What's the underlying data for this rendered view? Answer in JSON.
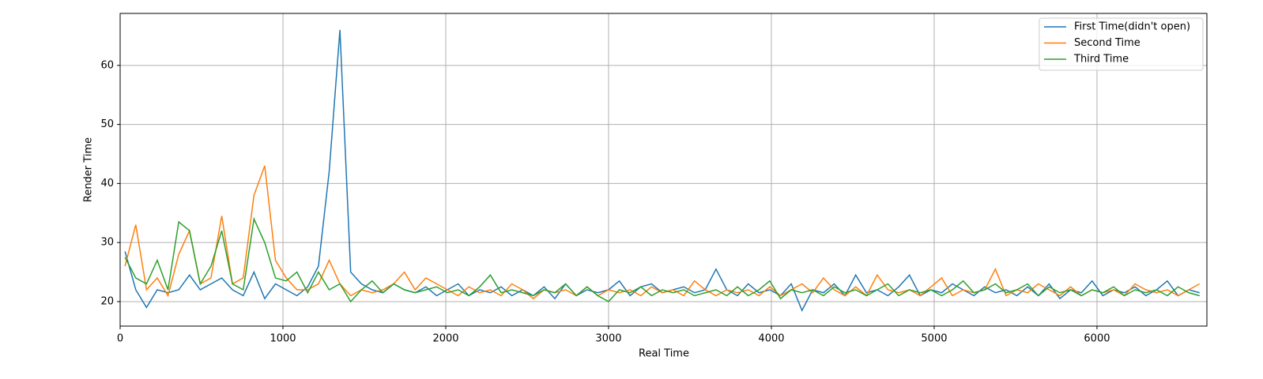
{
  "chart_data": {
    "type": "line",
    "xlabel": "Real Time",
    "ylabel": "Render Time",
    "x": [
      30,
      96,
      162,
      228,
      294,
      360,
      426,
      492,
      558,
      624,
      690,
      756,
      822,
      888,
      954,
      1020,
      1086,
      1152,
      1218,
      1284,
      1350,
      1416,
      1482,
      1548,
      1614,
      1680,
      1746,
      1812,
      1878,
      1944,
      2010,
      2076,
      2142,
      2208,
      2274,
      2340,
      2406,
      2472,
      2538,
      2604,
      2670,
      2736,
      2802,
      2868,
      2934,
      3000,
      3066,
      3132,
      3198,
      3264,
      3330,
      3396,
      3462,
      3528,
      3594,
      3660,
      3726,
      3792,
      3858,
      3924,
      3990,
      4056,
      4122,
      4188,
      4254,
      4320,
      4386,
      4452,
      4518,
      4584,
      4650,
      4716,
      4782,
      4848,
      4914,
      4980,
      5046,
      5112,
      5178,
      5244,
      5310,
      5376,
      5442,
      5508,
      5574,
      5640,
      5706,
      5772,
      5838,
      5904,
      5970,
      6036,
      6102,
      6168,
      6234,
      6300,
      6366,
      6432,
      6498,
      6564,
      6630
    ],
    "series": [
      {
        "name": "First Time(didn't open)",
        "color": "#1f77b4",
        "values": [
          28.5,
          22,
          19,
          22,
          21.5,
          22,
          24.5,
          22,
          23,
          24,
          22,
          21,
          25,
          20.5,
          23,
          22,
          21,
          22.5,
          26,
          42,
          66,
          25,
          23,
          22,
          21.5,
          23,
          22,
          21.5,
          22.5,
          21,
          22,
          23,
          21,
          22,
          21.5,
          22.5,
          21,
          22,
          21,
          22.5,
          20.5,
          23,
          21,
          22,
          21.5,
          22,
          23.5,
          21,
          22.5,
          23,
          21.5,
          22,
          22.5,
          21.5,
          22,
          25.5,
          22,
          21,
          23,
          21.5,
          22,
          21,
          23,
          18.5,
          22,
          21.5,
          23,
          21,
          24.5,
          21.5,
          22,
          21,
          22.5,
          24.5,
          21,
          22,
          21.5,
          23,
          22,
          21,
          22.5,
          21.5,
          22,
          21,
          22.5,
          21,
          23,
          20.5,
          22,
          21.5,
          23.5,
          21,
          22,
          21.5,
          22.5,
          21,
          22,
          23.5,
          21,
          22,
          21.5
        ]
      },
      {
        "name": "Second Time",
        "color": "#ff7f0e",
        "values": [
          26,
          33,
          22,
          24,
          21,
          28,
          32,
          23,
          24,
          34.5,
          23,
          24,
          38,
          43,
          27,
          24,
          22,
          22,
          23,
          27,
          23,
          21,
          22,
          21.5,
          22,
          23,
          25,
          22,
          24,
          23,
          22,
          21,
          22.5,
          21.5,
          22,
          21,
          23,
          22,
          20.5,
          22,
          21.5,
          22,
          21,
          22.5,
          21,
          22,
          21.5,
          22,
          21,
          22.5,
          21.5,
          22,
          21,
          23.5,
          22,
          21,
          22,
          21.5,
          22,
          21,
          22.5,
          21,
          22,
          23,
          21.5,
          24,
          22,
          21,
          22.5,
          21,
          24.5,
          22,
          21.5,
          22,
          21,
          22.5,
          24,
          21,
          22,
          21.5,
          22,
          25.5,
          21,
          22,
          21.5,
          23,
          22,
          21,
          22.5,
          21,
          22,
          21.5,
          22,
          21,
          23,
          22,
          21.5,
          22,
          21,
          22,
          23
        ]
      },
      {
        "name": "Third Time",
        "color": "#2ca02c",
        "values": [
          27.5,
          24,
          23,
          27,
          22,
          33.5,
          32,
          23,
          26,
          32,
          23,
          22,
          34,
          30,
          24,
          23.5,
          25,
          21.5,
          25,
          22,
          23,
          20,
          22,
          23.5,
          21.5,
          23,
          22,
          21.5,
          22,
          22.5,
          21.5,
          22,
          21,
          22.5,
          24.5,
          21.5,
          22,
          21.5,
          21,
          22,
          21.5,
          23,
          21,
          22.5,
          21,
          20,
          22,
          21.5,
          22.5,
          21,
          22,
          21.5,
          22,
          21,
          21.5,
          22,
          21,
          22.5,
          21,
          22,
          23.5,
          20.5,
          22,
          21.5,
          22,
          21,
          22.5,
          21.5,
          22,
          21,
          22,
          23,
          21,
          22,
          21.5,
          22,
          21,
          22,
          23.5,
          21.5,
          22,
          23,
          21.5,
          22,
          23,
          21,
          22.5,
          21.5,
          22,
          21,
          22,
          21.5,
          22.5,
          21,
          22,
          21.5,
          22,
          21,
          22.5,
          21.5,
          21
        ]
      }
    ],
    "xlim": [
      0,
      6675
    ],
    "ylim": [
      15.85,
      68.8
    ],
    "xticks": [
      0,
      1000,
      2000,
      3000,
      4000,
      5000,
      6000
    ],
    "yticks": [
      20,
      30,
      40,
      50,
      60
    ],
    "grid": true,
    "legend": "upper right"
  }
}
